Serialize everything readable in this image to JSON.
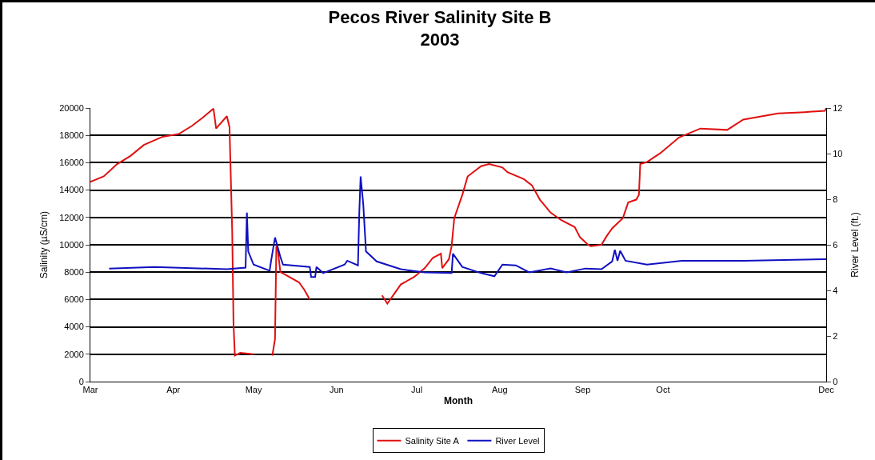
{
  "chart_data": {
    "type": "line",
    "title": "Pecos River Salinity Site B\n2003",
    "xlabel": "Month",
    "ylabel": "Salinity (µS/cm)",
    "y2label": "River Level (ft.)",
    "xlim": [
      "2003-03-01",
      "2003-12-01"
    ],
    "xticks": [
      {
        "value": "2003-03-01",
        "label": "Mar"
      },
      {
        "value": "2003-04-01",
        "label": "Apr"
      },
      {
        "value": "2003-05-01",
        "label": "May"
      },
      {
        "value": "2003-06-01",
        "label": "Jun"
      },
      {
        "value": "2003-07-01",
        "label": "Jul"
      },
      {
        "value": "2003-08-01",
        "label": "Aug"
      },
      {
        "value": "2003-09-01",
        "label": "Sep"
      },
      {
        "value": "2003-10-01",
        "label": "Oct"
      },
      {
        "value": "2003-12-01",
        "label": "Dec"
      }
    ],
    "ylim": [
      0,
      20000
    ],
    "yticks": [
      0,
      2000,
      4000,
      6000,
      8000,
      10000,
      12000,
      14000,
      16000,
      18000,
      20000
    ],
    "y2lim": [
      0,
      12
    ],
    "y2ticks": [
      0,
      2,
      4,
      6,
      8,
      10,
      12
    ],
    "grid": "y",
    "legend": "bottom",
    "marker": "none",
    "line_style": "solid",
    "series": [
      {
        "name": "Salinity Site A",
        "color": "#e01010",
        "x": [
          "2003-03-01",
          "2003-03-06",
          "2003-03-11",
          "2003-03-16",
          "2003-03-21",
          "2003-03-28",
          "2003-04-03",
          "2003-04-08",
          "2003-04-12",
          "2003-04-16",
          "2003-04-17",
          "2003-04-21",
          "2003-04-22",
          "2003-04-23",
          "2003-04-23T12:00",
          "2003-04-24",
          "2003-04-26",
          "2003-05-01",
          "2003-05-04",
          "2003-05-08",
          "2003-05-09",
          "2003-05-09T12:00",
          "2003-05-10",
          "2003-05-11",
          "2003-05-13",
          "2003-05-18",
          "2003-05-20",
          "2003-05-22",
          "2003-06-04",
          "2003-06-18",
          "2003-06-20",
          "2003-06-25",
          "2003-06-30",
          "2003-07-04",
          "2003-07-07",
          "2003-07-10",
          "2003-07-10T12:00",
          "2003-07-13",
          "2003-07-14",
          "2003-07-15",
          "2003-07-18",
          "2003-07-20",
          "2003-07-25",
          "2003-07-28",
          "2003-08-02",
          "2003-08-04",
          "2003-08-10",
          "2003-08-13",
          "2003-08-16",
          "2003-08-20",
          "2003-08-24",
          "2003-08-29",
          "2003-08-31",
          "2003-09-03",
          "2003-09-04",
          "2003-09-08",
          "2003-09-10",
          "2003-09-12",
          "2003-09-16",
          "2003-09-18",
          "2003-09-21",
          "2003-09-22",
          "2003-09-22T12:00",
          "2003-09-25",
          "2003-09-30",
          "2003-10-07",
          "2003-10-15",
          "2003-10-25",
          "2003-10-31",
          "2003-11-13",
          "2003-11-23",
          "2003-11-30T12:00",
          "2003-12-01"
        ],
        "values": [
          14600,
          15000,
          15900,
          16500,
          17300,
          17900,
          18100,
          18700,
          19300,
          19950,
          18500,
          19400,
          18600,
          11000,
          4200,
          1900,
          2100,
          2000,
          null,
          1900,
          3100,
          9900,
          9700,
          8000,
          7800,
          7250,
          6700,
          6000,
          null,
          6300,
          5700,
          7100,
          7650,
          8300,
          9050,
          9350,
          8300,
          8950,
          9900,
          11950,
          13650,
          15000,
          15750,
          15900,
          15650,
          15300,
          14800,
          14350,
          13300,
          12350,
          11800,
          11300,
          10550,
          10000,
          9900,
          10000,
          10650,
          11200,
          11950,
          13100,
          13300,
          13650,
          15900,
          16050,
          16700,
          17850,
          18500,
          18400,
          19150,
          19600,
          19700,
          19800,
          20000
        ]
      },
      {
        "name": "River Level",
        "color": "#1010c0",
        "axis": "y2",
        "x": [
          "2003-03-08",
          "2003-03-25",
          "2003-04-21",
          "2003-04-28",
          "2003-04-28T12:00",
          "2003-04-29",
          "2003-05-01",
          "2003-05-07",
          "2003-05-07T12:00",
          "2003-05-09",
          "2003-05-11",
          "2003-05-12",
          "2003-05-22",
          "2003-05-22T12:00",
          "2003-05-24",
          "2003-05-24T12:00",
          "2003-05-27",
          "2003-06-04",
          "2003-06-05",
          "2003-06-09",
          "2003-06-09T12:00",
          "2003-06-10",
          "2003-06-11",
          "2003-06-12",
          "2003-06-16",
          "2003-06-25",
          "2003-07-04",
          "2003-07-14",
          "2003-07-14T12:00",
          "2003-07-18",
          "2003-07-25",
          "2003-07-30",
          "2003-08-02",
          "2003-08-07",
          "2003-08-12",
          "2003-08-20",
          "2003-08-26",
          "2003-09-02",
          "2003-09-08",
          "2003-09-12",
          "2003-09-13",
          "2003-09-14",
          "2003-09-15",
          "2003-09-17",
          "2003-09-25",
          "2003-10-08",
          "2003-10-31",
          "2003-12-01"
        ],
        "values": [
          4.96,
          5.03,
          4.93,
          5.0,
          7.41,
          5.71,
          5.13,
          4.86,
          5.27,
          6.32,
          5.47,
          5.13,
          5.03,
          4.59,
          4.59,
          5.03,
          4.76,
          5.13,
          5.3,
          5.1,
          7.41,
          9.0,
          7.75,
          5.71,
          5.27,
          4.93,
          4.79,
          4.76,
          5.61,
          5.03,
          4.76,
          4.62,
          5.13,
          5.1,
          4.79,
          4.96,
          4.79,
          4.96,
          4.93,
          5.27,
          5.78,
          5.3,
          5.74,
          5.3,
          5.13,
          5.3,
          5.3,
          5.37
        ]
      }
    ]
  }
}
